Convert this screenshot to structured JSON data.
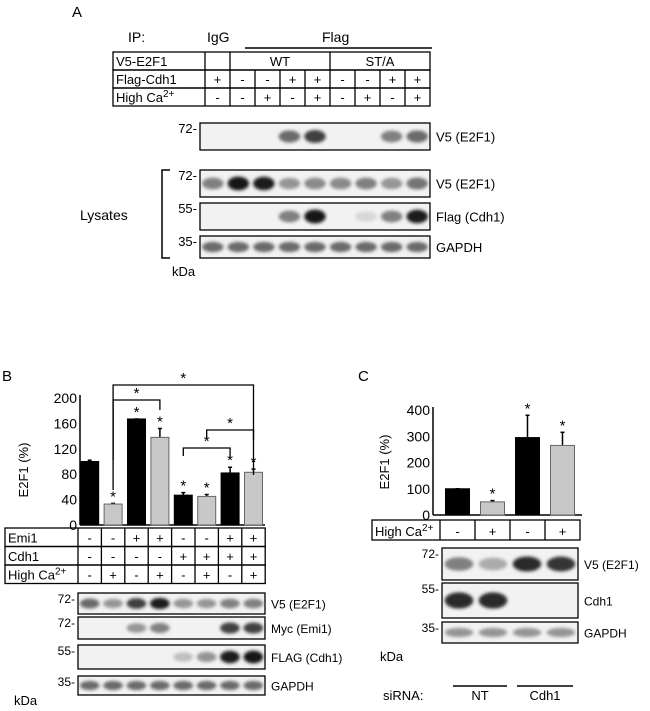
{
  "panelA": {
    "letter": "A",
    "ip_label": "IP:",
    "ip_igg": "IgG",
    "ip_flag": "Flag",
    "rows": [
      {
        "label": "V5-E2F1",
        "groups": [
          "",
          "WT",
          "ST/A"
        ]
      },
      {
        "label": "Flag-Cdh1",
        "values": [
          "+",
          "-",
          "-",
          "+",
          "+",
          "-",
          "-",
          "+",
          "+"
        ]
      },
      {
        "label": "High Ca",
        "sup": "2+",
        "values": [
          "-",
          "-",
          "+",
          "-",
          "+",
          "-",
          "+",
          "-",
          "+"
        ]
      }
    ],
    "blots": [
      {
        "marker": "72-",
        "label": "V5 (E2F1)",
        "band_intensity": [
          0,
          0,
          0,
          0.6,
          0.8,
          0,
          0,
          0.5,
          0.6
        ]
      },
      {
        "marker": "72-",
        "label": "V5 (E2F1)",
        "band_intensity": [
          0.5,
          1,
          0.95,
          0.4,
          0.45,
          0.45,
          0.5,
          0.4,
          0.55
        ]
      },
      {
        "marker": "55-",
        "label": "Flag (Cdh1)",
        "band_intensity": [
          0,
          0,
          0,
          0.5,
          1,
          0,
          0.1,
          0.5,
          0.95
        ]
      },
      {
        "marker": "35-",
        "label": "GAPDH",
        "band_intensity": [
          0.6,
          0.6,
          0.6,
          0.6,
          0.6,
          0.6,
          0.6,
          0.6,
          0.6
        ]
      }
    ],
    "lysates_label": "Lysates",
    "kda": "kDa"
  },
  "panelB": {
    "letter": "B",
    "chart_data": {
      "type": "bar",
      "ylabel": "E2F1 (%)",
      "ylim": [
        0,
        200
      ],
      "yticks": [
        "0",
        "40",
        "80",
        "120",
        "160",
        "200"
      ],
      "values": [
        100,
        33,
        167,
        138,
        47,
        45,
        82,
        83
      ],
      "errors": [
        2,
        1,
        0,
        14,
        4,
        3,
        9,
        5
      ],
      "colors": [
        "#000000",
        "#c8c8c8",
        "#000000",
        "#c8c8c8",
        "#000000",
        "#c8c8c8",
        "#000000",
        "#c8c8c8"
      ],
      "significant": [
        false,
        true,
        true,
        true,
        true,
        true,
        true,
        true
      ],
      "star": "*",
      "comparisons": [
        [
          1,
          3
        ],
        [
          1,
          7
        ],
        [
          4,
          6
        ],
        [
          5,
          7
        ]
      ]
    },
    "rows": [
      {
        "label": "Emi1",
        "values": [
          "-",
          "-",
          "+",
          "+",
          "-",
          "-",
          "+",
          "+"
        ]
      },
      {
        "label": "Cdh1",
        "values": [
          "-",
          "-",
          "-",
          "-",
          "+",
          "+",
          "+",
          "+"
        ]
      },
      {
        "label": "High Ca",
        "sup": "2+",
        "values": [
          "-",
          "+",
          "-",
          "+",
          "-",
          "+",
          "-",
          "+"
        ]
      }
    ],
    "blots": [
      {
        "marker": "72-",
        "label": "V5 (E2F1)",
        "band_intensity": [
          0.6,
          0.4,
          0.8,
          0.95,
          0.4,
          0.4,
          0.5,
          0.5
        ]
      },
      {
        "marker": "72-",
        "label": "Myc (Emi1)",
        "band_intensity": [
          0,
          0,
          0.4,
          0.5,
          0,
          0,
          0.8,
          0.8
        ]
      },
      {
        "marker": "55-",
        "label": "FLAG (Cdh1)",
        "band_intensity": [
          0,
          0,
          0,
          0,
          0.2,
          0.4,
          0.95,
          1
        ]
      },
      {
        "marker": "35-",
        "label": "GAPDH",
        "band_intensity": [
          0.6,
          0.6,
          0.6,
          0.6,
          0.6,
          0.6,
          0.6,
          0.6
        ]
      }
    ],
    "kda": "kDa"
  },
  "panelC": {
    "letter": "C",
    "chart_data": {
      "type": "bar",
      "ylabel": "E2F1 (%)",
      "ylim": [
        0,
        400
      ],
      "yticks": [
        "0",
        "100",
        "200",
        "300",
        "400"
      ],
      "values": [
        100,
        50,
        295,
        265
      ],
      "errors": [
        0,
        5,
        85,
        50
      ],
      "colors": [
        "#000000",
        "#c8c8c8",
        "#000000",
        "#c8c8c8"
      ],
      "significant": [
        false,
        true,
        true,
        true
      ],
      "star": "*"
    },
    "rows": [
      {
        "label": "High Ca",
        "sup": "2+",
        "values": [
          "-",
          "+",
          "-",
          "+"
        ]
      }
    ],
    "blots": [
      {
        "marker": "72-",
        "label": "V5 (E2F1)",
        "band_intensity": [
          0.5,
          0.3,
          0.9,
          0.85
        ]
      },
      {
        "marker": "55-",
        "label": "Cdh1",
        "band_intensity": [
          0.9,
          0.9,
          0,
          0
        ]
      },
      {
        "marker": "35-",
        "label": "GAPDH",
        "band_intensity": [
          0.4,
          0.4,
          0.4,
          0.4
        ]
      }
    ],
    "kda": "kDa",
    "sirna_label": "siRNA:",
    "sirna_groups": [
      "NT",
      "Cdh1"
    ]
  }
}
